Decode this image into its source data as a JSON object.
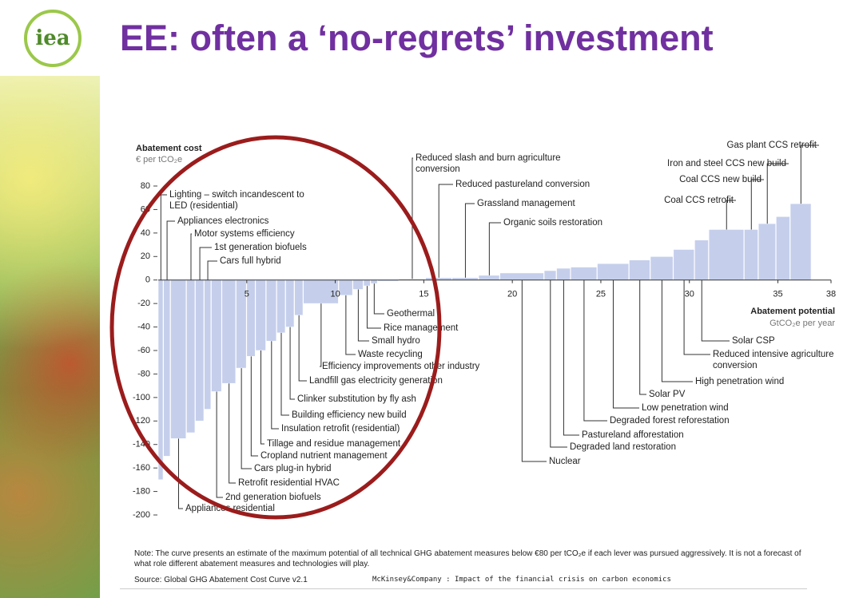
{
  "slide": {
    "logo": "iea",
    "title": "EE: often a ‘no-regrets’ investment",
    "note": "Note: The curve presents an estimate of the maximum potential of all technical GHG abatement measures below €80 per tCO₂e if each lever was pursued aggressively. It is not a forecast of what role different abatement measures and technologies will play.",
    "source": "Source: Global GHG Abatement Cost Curve v2.1",
    "publisher": "McKinsey&Company : Impact of the financial crisis on carbon economics"
  },
  "chart_data": {
    "type": "bar",
    "y_label": "Abatement cost",
    "y_unit": "€ per tCO₂e",
    "x_label": "Abatement potential",
    "x_unit": "GtCO₂e per year",
    "color": "#c5cfec",
    "categories": [
      "Lighting – switch incandescent to LED (residential)",
      "Appliances electronics",
      "Appliances residential",
      "Motor systems efficiency",
      "1st generation biofuels",
      "Cars full hybrid",
      "2nd generation biofuels",
      "Retrofit residential HVAC",
      "Cars plug-in hybrid",
      "Cropland nutrient management",
      "Tillage and residue management",
      "Insulation retrofit (residential)",
      "Building efficiency new build",
      "Clinker substitution by fly ash",
      "Landfill gas electricity generation",
      "Efficiency improvements other industry",
      "Waste recycling",
      "Small hydro",
      "Rice management",
      "Geothermal",
      null,
      "Reduced slash and burn agriculture conversion",
      "Reduced pastureland conversion",
      "Grassland management",
      "Organic soils restoration",
      "Nuclear",
      "Degraded land restoration",
      "Pastureland afforestation",
      "Degraded forest reforestation",
      "Low penetration wind",
      "Solar PV",
      "High penetration wind",
      "Reduced intensive agriculture conversion",
      "Solar CSP",
      "Coal CCS retrofit",
      "Coal CCS new build",
      "Iron and steel CCS new build",
      null,
      "Gas plant CCS retrofit"
    ],
    "widths": [
      0.3,
      0.4,
      0.9,
      0.5,
      0.5,
      0.4,
      0.6,
      0.8,
      0.6,
      0.5,
      0.6,
      0.6,
      0.5,
      0.5,
      0.5,
      2.0,
      0.8,
      0.6,
      0.4,
      0.4,
      1.2,
      1.5,
      1.5,
      1.5,
      1.2,
      2.5,
      0.7,
      0.8,
      1.5,
      1.8,
      1.2,
      1.3,
      1.2,
      0.8,
      2.0,
      0.8,
      1.0,
      0.8,
      1.2
    ],
    "values": [
      -170,
      -150,
      -135,
      -130,
      -120,
      -110,
      -95,
      -88,
      -75,
      -65,
      -60,
      -52,
      -45,
      -40,
      -30,
      -20,
      -13,
      -8,
      -5,
      -3,
      -1,
      1,
      2,
      2,
      4,
      6,
      8,
      10,
      11,
      14,
      17,
      20,
      26,
      34,
      43,
      43,
      48,
      54,
      65
    ],
    "xlim": [
      0,
      38
    ],
    "xticks": [
      5,
      10,
      15,
      20,
      25,
      30,
      35,
      38
    ],
    "ylim": [
      -200,
      80
    ],
    "yticks": [
      80,
      60,
      40,
      20,
      0,
      -20,
      -40,
      -60,
      -80,
      -100,
      -120,
      -140,
      -160,
      -180,
      -200
    ]
  }
}
